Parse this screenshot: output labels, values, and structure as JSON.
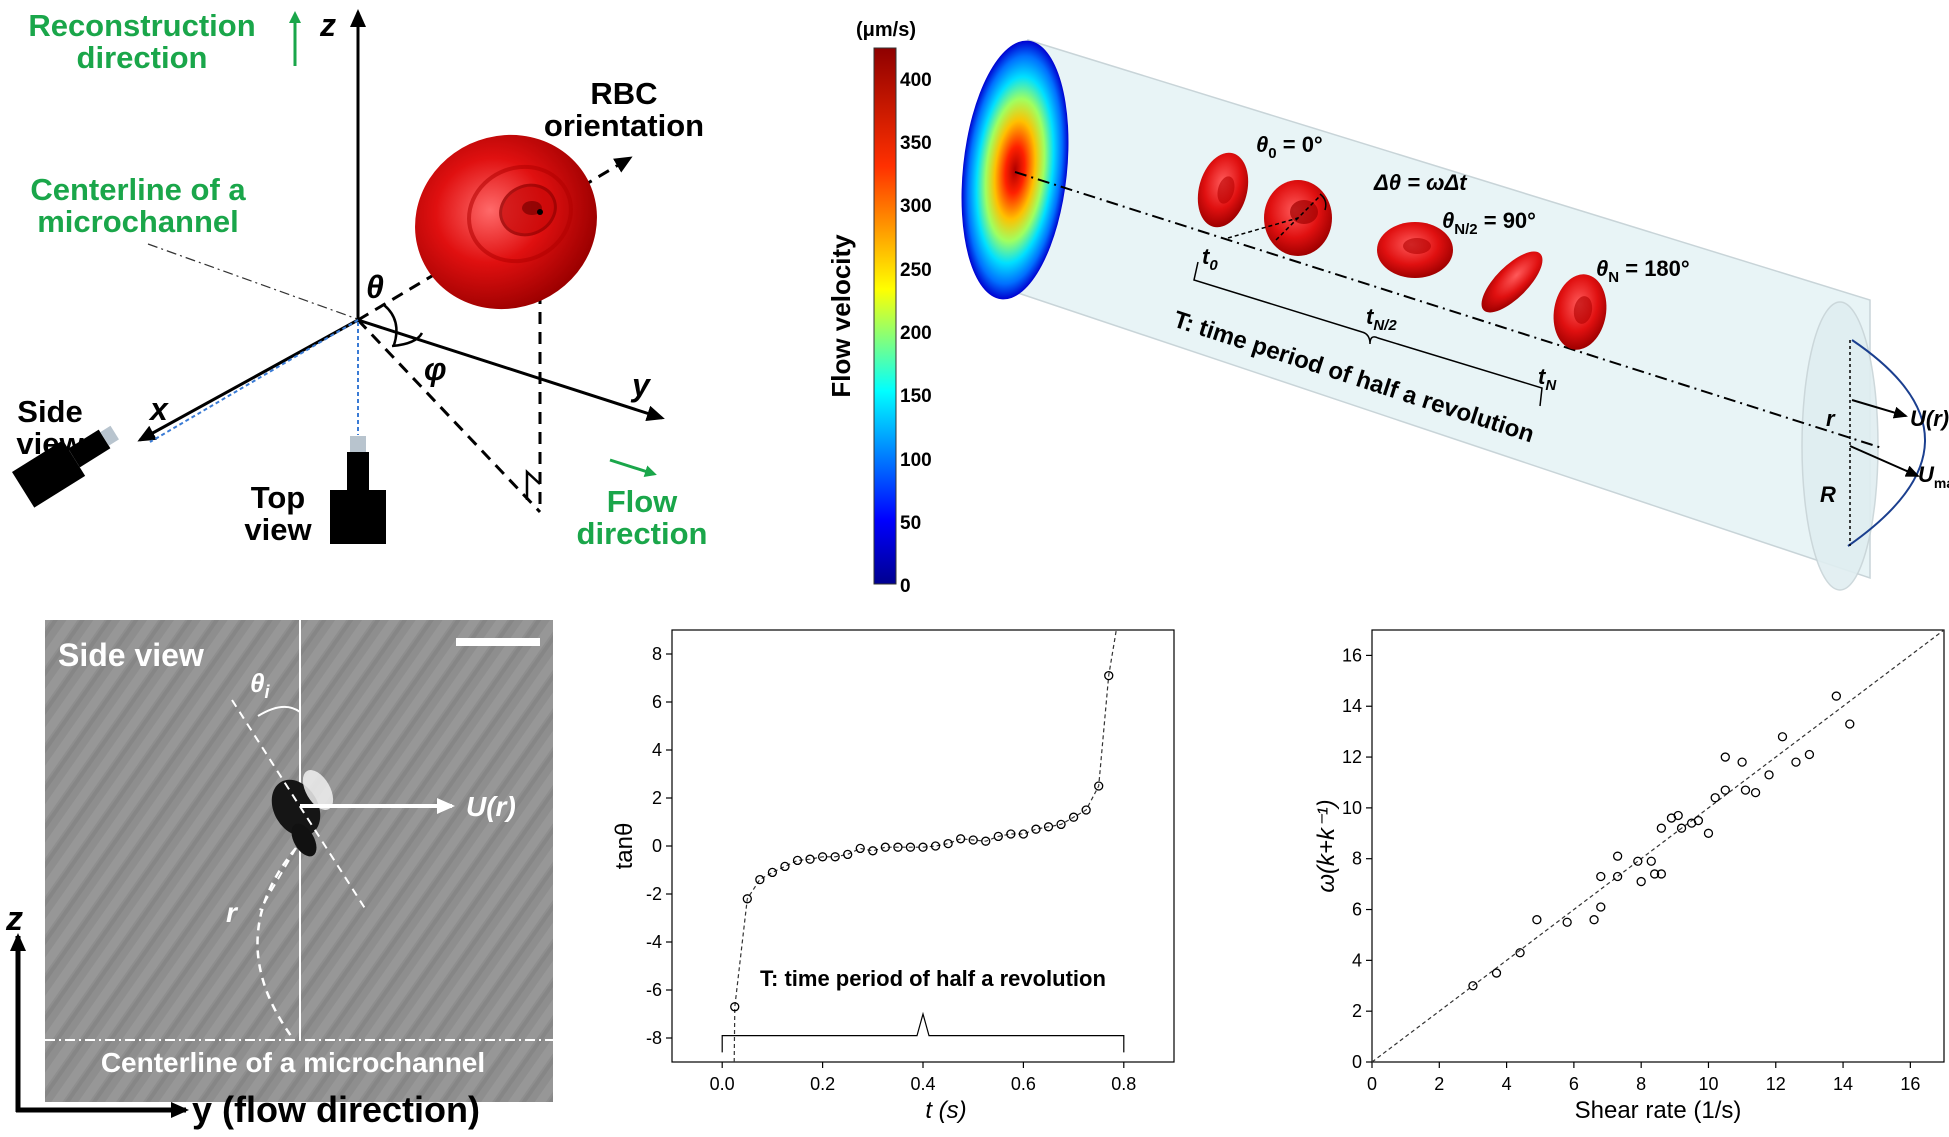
{
  "panel_a": {
    "reconstruction_line1": "Reconstruction",
    "reconstruction_line2": "direction",
    "axis_z": "z",
    "axis_x": "x",
    "axis_y": "y",
    "rbc_line1": "RBC",
    "rbc_line2": "orientation",
    "centerline_line1": "Centerline of a",
    "centerline_line2": "microchannel",
    "theta": "θ",
    "phi": "φ",
    "side_view_line1": "Side",
    "side_view_line2": "view",
    "top_view_line1": "Top",
    "top_view_line2": "view",
    "flow_line1": "Flow",
    "flow_line2": "direction",
    "green": "#1aa64a",
    "rbc_color": "#e01010"
  },
  "panel_b": {
    "unit": "(μm/s)",
    "colorbar_label": "Flow velocity",
    "ticks": [
      "0",
      "50",
      "100",
      "150",
      "200",
      "250",
      "300",
      "350",
      "400"
    ],
    "theta0": "θ",
    "theta0_sub": "0",
    "theta0_val": " = 0°",
    "delta_theta": "Δθ = ωΔt",
    "thetaN2": "θ",
    "thetaN2_sub": "N/2",
    "thetaN2_val": " = 90°",
    "thetaN": "θ",
    "thetaN_sub": "N",
    "thetaN_val": " = 180°",
    "t0": "t",
    "t0_sub": "0",
    "tN2": "t",
    "tN2_sub": "N/2",
    "tN": "t",
    "tN_sub": "N",
    "period": "T: time period of half a revolution",
    "r": "r",
    "R": "R",
    "U_r": "U(r)",
    "U_max": "U",
    "U_max_sub": "max"
  },
  "panel_c": {
    "title": "Side view",
    "theta_i": "θ",
    "theta_i_sub": "i",
    "U_r": "U(r)",
    "r": "r",
    "centerline": "Centerline of a microchannel",
    "axis_z": "z",
    "axis_y": "y (flow direction)"
  },
  "chart_data": [
    {
      "type": "scatter",
      "xlabel": "t (s)",
      "ylabel": "tanθ",
      "xlim": [
        -0.1,
        0.9
      ],
      "ylim": [
        -9,
        9
      ],
      "x_ticks": [
        "0.0",
        "0.2",
        "0.4",
        "0.6",
        "0.8"
      ],
      "y_ticks": [
        "-8",
        "-6",
        "-4",
        "-2",
        "0",
        "2",
        "4",
        "6",
        "8"
      ],
      "annotation": "T: time period of half a revolution",
      "points": [
        [
          0.025,
          -6.7
        ],
        [
          0.05,
          -2.2
        ],
        [
          0.075,
          -1.4
        ],
        [
          0.1,
          -1.1
        ],
        [
          0.125,
          -0.85
        ],
        [
          0.15,
          -0.6
        ],
        [
          0.175,
          -0.55
        ],
        [
          0.2,
          -0.45
        ],
        [
          0.225,
          -0.45
        ],
        [
          0.25,
          -0.35
        ],
        [
          0.275,
          -0.1
        ],
        [
          0.3,
          -0.2
        ],
        [
          0.325,
          -0.05
        ],
        [
          0.35,
          -0.05
        ],
        [
          0.375,
          -0.05
        ],
        [
          0.4,
          -0.05
        ],
        [
          0.425,
          0.0
        ],
        [
          0.45,
          0.1
        ],
        [
          0.475,
          0.3
        ],
        [
          0.5,
          0.25
        ],
        [
          0.525,
          0.2
        ],
        [
          0.55,
          0.4
        ],
        [
          0.575,
          0.5
        ],
        [
          0.6,
          0.5
        ],
        [
          0.625,
          0.7
        ],
        [
          0.65,
          0.8
        ],
        [
          0.675,
          0.9
        ],
        [
          0.7,
          1.2
        ],
        [
          0.725,
          1.5
        ],
        [
          0.75,
          2.5
        ],
        [
          0.77,
          7.1
        ]
      ]
    },
    {
      "type": "scatter",
      "xlabel": "Shear rate (1/s)",
      "ylabel": "ω(k+k⁻¹)",
      "xlim": [
        0,
        17
      ],
      "ylim": [
        0,
        17
      ],
      "x_ticks": [
        "0",
        "2",
        "4",
        "6",
        "8",
        "10",
        "12",
        "14",
        "16"
      ],
      "y_ticks": [
        "0",
        "2",
        "4",
        "6",
        "8",
        "10",
        "12",
        "14",
        "16"
      ],
      "fit_line": [
        [
          0,
          0
        ],
        [
          17,
          17
        ]
      ],
      "points": [
        [
          3.0,
          3.0
        ],
        [
          3.7,
          3.5
        ],
        [
          4.4,
          4.3
        ],
        [
          4.9,
          5.6
        ],
        [
          5.8,
          5.5
        ],
        [
          6.6,
          5.6
        ],
        [
          6.8,
          6.1
        ],
        [
          6.8,
          7.3
        ],
        [
          7.3,
          7.3
        ],
        [
          7.3,
          8.1
        ],
        [
          7.9,
          7.9
        ],
        [
          8.0,
          7.1
        ],
        [
          8.3,
          7.9
        ],
        [
          8.4,
          7.4
        ],
        [
          8.6,
          7.4
        ],
        [
          8.6,
          9.2
        ],
        [
          8.9,
          9.6
        ],
        [
          9.1,
          9.7
        ],
        [
          9.2,
          9.2
        ],
        [
          9.5,
          9.4
        ],
        [
          9.7,
          9.5
        ],
        [
          10.0,
          9.0
        ],
        [
          10.2,
          10.4
        ],
        [
          10.5,
          10.7
        ],
        [
          10.5,
          12.0
        ],
        [
          11.0,
          11.8
        ],
        [
          11.1,
          10.7
        ],
        [
          11.4,
          10.6
        ],
        [
          11.8,
          11.3
        ],
        [
          12.2,
          12.8
        ],
        [
          12.6,
          11.8
        ],
        [
          13.0,
          12.1
        ],
        [
          13.8,
          14.4
        ],
        [
          14.2,
          13.3
        ]
      ]
    }
  ]
}
